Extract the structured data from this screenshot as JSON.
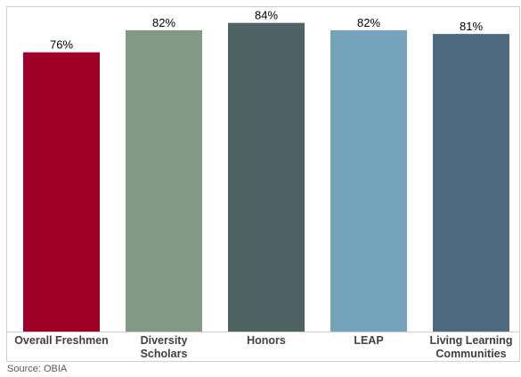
{
  "chart_data": {
    "type": "bar",
    "categories": [
      [
        "Overall Freshmen"
      ],
      [
        "Diversity",
        "Scholars"
      ],
      [
        "Honors"
      ],
      [
        "LEAP"
      ],
      [
        "Living Learning",
        "Communities"
      ]
    ],
    "values": [
      76,
      82,
      84,
      82,
      81
    ],
    "value_labels": [
      "76%",
      "82%",
      "84%",
      "82%",
      "81%"
    ],
    "colors": [
      "#9e0027",
      "#849886",
      "#4f6462",
      "#75a3bb",
      "#4f6a7e"
    ],
    "ylim": [
      0,
      90
    ],
    "grid": false,
    "legend": "none"
  },
  "source": "Source: OBIA"
}
